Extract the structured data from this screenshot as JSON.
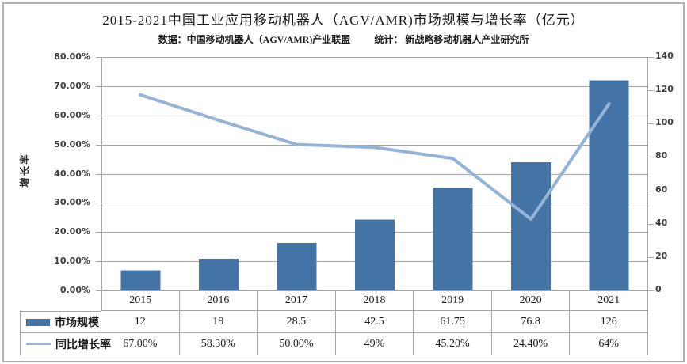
{
  "title": "2015-2021中国工业应用移动机器人（AGV/AMR)市场规模与增长率（亿元）",
  "sources": {
    "left": "数据：中国移动机器人（AGV/AMR)产业联盟",
    "right": "统计： 新战略移动机器人产业研究所"
  },
  "axes": {
    "left": {
      "label": "增长率",
      "ticks": [
        "80.00%",
        "70.00%",
        "60.00%",
        "50.00%",
        "40.00%",
        "30.00%",
        "20.00%",
        "10.00%",
        "0.00%"
      ]
    },
    "right": {
      "ticks": [
        "140",
        "120",
        "100",
        "80",
        "60",
        "40",
        "20",
        "0"
      ]
    }
  },
  "table": {
    "years": [
      "2015",
      "2016",
      "2017",
      "2018",
      "2019",
      "2020",
      "2021"
    ],
    "series": [
      {
        "label": "市场规模",
        "values": [
          "12",
          "19",
          "28.5",
          "42.5",
          "61.75",
          "76.8",
          "126"
        ]
      },
      {
        "label": "同比增长率",
        "values": [
          "67.00%",
          "58.30%",
          "50.00%",
          "49%",
          "45.20%",
          "24.40%",
          "64%"
        ]
      }
    ]
  },
  "chart_data": {
    "type": "bar+line combo",
    "title": "2015-2021中国工业应用移动机器人（AGV/AMR)市场规模与增长率（亿元）",
    "subtitle": "数据：中国移动机器人（AGV/AMR)产业联盟  统计： 新战略移动机器人产业研究所",
    "categories": [
      2015,
      2016,
      2017,
      2018,
      2019,
      2020,
      2021
    ],
    "series": [
      {
        "name": "市场规模",
        "type": "bar",
        "axis": "right",
        "values": [
          12,
          19,
          28.5,
          42.5,
          61.75,
          76.8,
          126
        ],
        "color": "#4473a5"
      },
      {
        "name": "同比增长率",
        "type": "line",
        "axis": "left",
        "values": [
          67,
          58.3,
          50,
          49,
          45.2,
          24.4,
          64
        ],
        "unit": "%",
        "color": "#95b3d7"
      }
    ],
    "left_axis": {
      "label": "增长率",
      "min": 0,
      "max": 80,
      "step": 10,
      "format": "percent"
    },
    "right_axis": {
      "min": 0,
      "max": 140,
      "step": 20
    },
    "grid": true,
    "legend_position": "data-table-left",
    "colors": {
      "bar": "#4473a5",
      "line": "#95b3d7",
      "grid": "#a6a6a6",
      "axis_text": "#3f3f3f"
    }
  }
}
